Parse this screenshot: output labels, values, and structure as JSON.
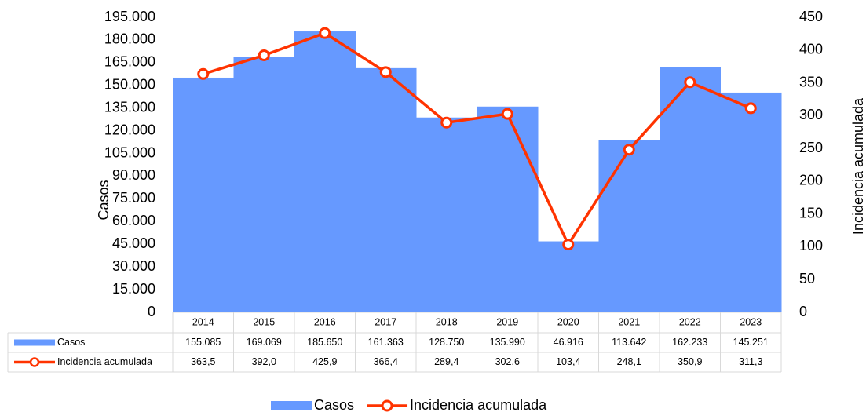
{
  "chart_data": {
    "type": "bar-line",
    "y_label": "Casos",
    "y2_label": "Incidencia acumulada",
    "categories": [
      "2014",
      "2015",
      "2016",
      "2017",
      "2018",
      "2019",
      "2020",
      "2021",
      "2022",
      "2023"
    ],
    "series": [
      {
        "name": "Casos",
        "type": "bar",
        "color": "#6699ff",
        "values": [
          155085,
          169069,
          185650,
          161363,
          128750,
          135990,
          46916,
          113642,
          162233,
          145251
        ],
        "value_labels": [
          "155.085",
          "169.069",
          "185.650",
          "161.363",
          "128.750",
          "135.990",
          "46.916",
          "113.642",
          "162.233",
          "145.251"
        ]
      },
      {
        "name": "Incidencia acumulada",
        "type": "line",
        "color": "#ff3300",
        "axis": "y2",
        "values": [
          363.5,
          392.0,
          425.9,
          366.4,
          289.4,
          302.6,
          103.4,
          248.1,
          350.9,
          311.3
        ],
        "value_labels": [
          "363,5",
          "392,0",
          "425,9",
          "366,4",
          "289,4",
          "302,6",
          "103,4",
          "248,1",
          "350,9",
          "311,3"
        ]
      }
    ],
    "ylim": [
      0,
      195000
    ],
    "yticks": [
      0,
      {
        "value": 15000,
        "label": "15.000"
      },
      {
        "value": 30000,
        "label": "30.000"
      },
      {
        "value": 45000,
        "label": "45.000"
      },
      {
        "value": 60000,
        "label": "60.000"
      },
      {
        "value": 75000,
        "label": "75.000"
      },
      {
        "value": 90000,
        "label": "90.000"
      },
      {
        "value": 105000,
        "label": "105.000"
      },
      {
        "value": 120000,
        "label": "120.000"
      },
      {
        "value": 135000,
        "label": "135.000"
      },
      {
        "value": 150000,
        "label": "150.000"
      },
      {
        "value": 165000,
        "label": "165.000"
      },
      {
        "value": 180000,
        "label": "180.000"
      },
      {
        "value": 195000,
        "label": "195.000"
      }
    ],
    "y2lim": [
      0,
      450
    ],
    "y2ticks": [
      0,
      50,
      100,
      150,
      200,
      250,
      300,
      350,
      400,
      450
    ],
    "data_table": true
  }
}
